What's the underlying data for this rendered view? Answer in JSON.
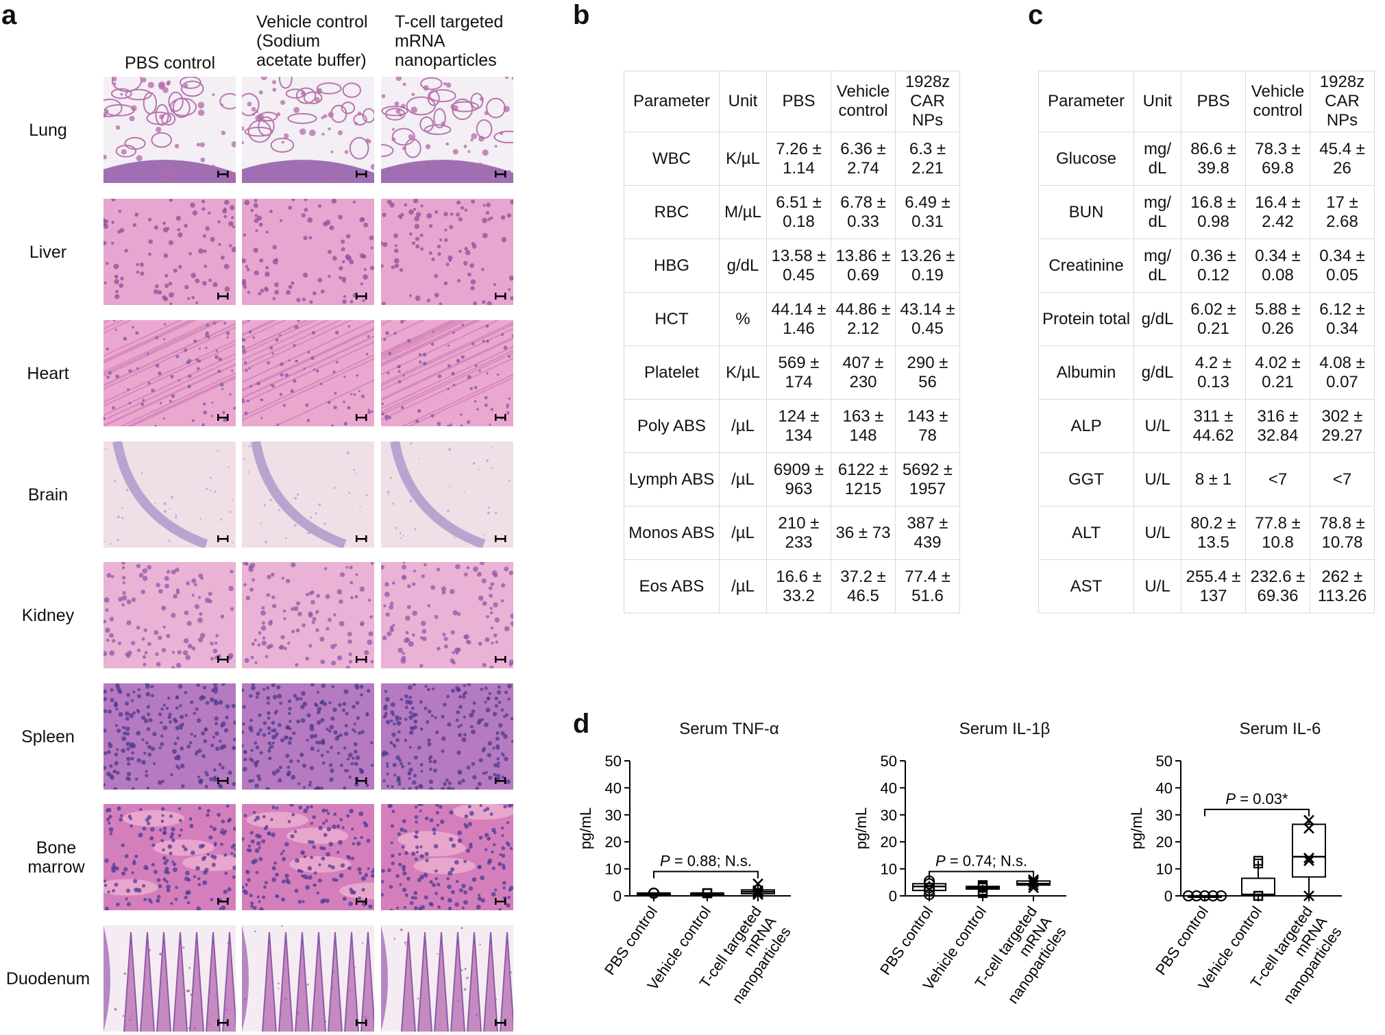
{
  "panels": {
    "a": "a",
    "b": "b",
    "c": "c",
    "d": "d"
  },
  "histology": {
    "columns": [
      "PBS control",
      "Vehicle control\n(Sodium\nacetate buffer)",
      "T-cell targeted\nmRNA\nnanoparticles"
    ],
    "rows": [
      "Lung",
      "Liver",
      "Heart",
      "Brain",
      "Kidney",
      "Spleen",
      "Bone\nmarrow",
      "Duodenum"
    ]
  },
  "table_b": {
    "headers": [
      "Parameter",
      "Unit",
      "PBS",
      "Vehicle\ncontrol",
      "1928z\nCAR\nNPs"
    ],
    "rows": [
      [
        "WBC",
        "K/µL",
        "7.26 ±\n1.14",
        "6.36 ±\n2.74",
        "6.3 ±\n2.21"
      ],
      [
        "RBC",
        "M/µL",
        "6.51 ±\n0.18",
        "6.78 ±\n0.33",
        "6.49 ±\n0.31"
      ],
      [
        "HBG",
        "g/dL",
        "13.58 ±\n0.45",
        "13.86 ±\n0.69",
        "13.26 ±\n0.19"
      ],
      [
        "HCT",
        "%",
        "44.14 ±\n1.46",
        "44.86 ±\n2.12",
        "43.14 ±\n0.45"
      ],
      [
        "Platelet",
        "K/µL",
        "569 ±\n174",
        "407 ±\n230",
        "290 ±\n56"
      ],
      [
        "Poly ABS",
        "/µL",
        "124 ±\n134",
        "163 ±\n148",
        "143 ±\n78"
      ],
      [
        "Lymph ABS",
        "/µL",
        "6909 ±\n963",
        "6122 ±\n1215",
        "5692 ±\n1957"
      ],
      [
        "Monos ABS",
        "/µL",
        "210 ±\n233",
        "36 ± 73",
        "387 ±\n439"
      ],
      [
        "Eos ABS",
        "/µL",
        "16.6 ±\n33.2",
        "37.2 ±\n46.5",
        "77.4 ±\n51.6"
      ]
    ]
  },
  "table_c": {
    "headers": [
      "Parameter",
      "Unit",
      "PBS",
      "Vehicle\ncontrol",
      "1928z\nCAR\nNPs"
    ],
    "rows": [
      [
        "Glucose",
        "mg/\ndL",
        "86.6 ±\n39.8",
        "78.3 ±\n69.8",
        "45.4 ±\n26"
      ],
      [
        "BUN",
        "mg/\ndL",
        "16.8 ±\n0.98",
        "16.4 ±\n2.42",
        "17 ±\n2.68"
      ],
      [
        "Creatinine",
        "mg/\ndL",
        "0.36 ±\n0.12",
        "0.34 ±\n0.08",
        "0.34 ±\n0.05"
      ],
      [
        "Protein total",
        "g/dL",
        "6.02 ±\n0.21",
        "5.88 ±\n0.26",
        "6.12 ±\n0.34"
      ],
      [
        "Albumin",
        "g/dL",
        "4.2 ±\n0.13",
        "4.02 ±\n0.21",
        "4.08 ±\n0.07"
      ],
      [
        "ALP",
        "U/L",
        "311 ±\n44.62",
        "316 ±\n32.84",
        "302 ±\n29.27"
      ],
      [
        "GGT",
        "U/L",
        "8 ± 1",
        "<7",
        "<7"
      ],
      [
        "ALT",
        "U/L",
        "80.2 ±\n13.5",
        "77.8 ±\n10.8",
        "78.8 ±\n10.78"
      ],
      [
        "AST",
        "U/L",
        "255.4 ±\n137",
        "232.6 ±\n69.36",
        "262 ±\n113.26"
      ]
    ]
  },
  "chart_data": [
    {
      "type": "box",
      "title": "Serum TNF-α",
      "ylabel": "pg/mL",
      "ylim": [
        0,
        50
      ],
      "yticks": [
        0,
        10,
        20,
        30,
        40,
        50
      ],
      "categories": [
        "PBS control",
        "Vehicle control",
        "T-cell targeted\nmRNA\nnanoparticles"
      ],
      "markers": [
        "circle",
        "square",
        "cross"
      ],
      "points": [
        [
          1,
          1,
          1,
          1,
          1
        ],
        [
          1,
          1,
          1,
          1,
          1
        ],
        [
          0.5,
          1,
          1.5,
          2,
          4.5
        ]
      ],
      "box": [
        [
          1,
          1,
          1
        ],
        [
          1,
          1,
          1
        ],
        [
          0.8,
          1.5,
          2.2
        ]
      ],
      "annotation": {
        "text_p": "P",
        "text_rest": " = 0.88; N.s.",
        "from": 0,
        "to": 2
      }
    },
    {
      "type": "box",
      "title": "Serum IL-1β",
      "ylabel": "pg/mL",
      "ylim": [
        0,
        50
      ],
      "yticks": [
        0,
        10,
        20,
        30,
        40,
        50
      ],
      "categories": [
        "PBS control",
        "Vehicle control",
        "T-cell targeted\nmRNA\nnanoparticles"
      ],
      "markers": [
        "circle",
        "square",
        "cross"
      ],
      "points": [
        [
          0.5,
          2,
          3,
          4.5,
          5.5
        ],
        [
          1,
          2,
          3,
          3.5,
          4
        ],
        [
          3,
          4,
          5,
          5.5,
          6
        ]
      ],
      "box": [
        [
          2,
          3.5,
          4.5
        ],
        [
          2.5,
          3,
          3.5
        ],
        [
          4,
          4.5,
          5.5
        ]
      ],
      "annotation": {
        "text_p": "P",
        "text_rest": " = 0.74; N.s.",
        "from": 0,
        "to": 2
      }
    },
    {
      "type": "box",
      "title": "Serum IL-6",
      "ylabel": "pg/mL",
      "ylim": [
        0,
        50
      ],
      "yticks": [
        0,
        10,
        20,
        30,
        40,
        50
      ],
      "categories": [
        "PBS control",
        "Vehicle control",
        "T-cell targeted\nmRNA\nnanoparticles"
      ],
      "markers": [
        "circle",
        "square",
        "cross"
      ],
      "points": [
        [
          0,
          0,
          0,
          0,
          0
        ],
        [
          0,
          0,
          0,
          12,
          13
        ],
        [
          0,
          13,
          14,
          25,
          28
        ]
      ],
      "box": [
        [
          0,
          0,
          0
        ],
        [
          0,
          0.5,
          6.5
        ],
        [
          7,
          14.5,
          26.5
        ]
      ],
      "annotation": {
        "text_p": "P",
        "text_rest": " = 0.03*",
        "from": 0,
        "to": 2
      }
    }
  ],
  "colors": {
    "he_pink": "#e9a9cf",
    "he_purple": "#7a4a9a",
    "lung_bg": "#f1eef3",
    "brain_bg": "#f0dde7"
  }
}
